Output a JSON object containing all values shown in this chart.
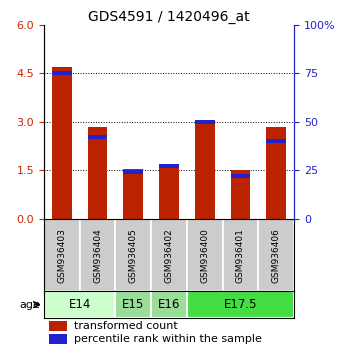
{
  "title": "GDS4591 / 1420496_at",
  "samples": [
    "GSM936403",
    "GSM936404",
    "GSM936405",
    "GSM936402",
    "GSM936400",
    "GSM936401",
    "GSM936406"
  ],
  "transformed_counts": [
    4.7,
    2.85,
    1.55,
    1.7,
    3.05,
    1.5,
    2.85
  ],
  "percentile_ranks": [
    75,
    42,
    24,
    27,
    50,
    22,
    40
  ],
  "left_ylim": [
    0,
    6
  ],
  "left_yticks": [
    0,
    1.5,
    3,
    4.5,
    6
  ],
  "right_ylim": [
    0,
    100
  ],
  "right_yticks": [
    0,
    25,
    50,
    75,
    100
  ],
  "bar_color": "#bb2200",
  "percentile_color": "#2222cc",
  "bar_width": 0.55,
  "age_groups": [
    {
      "label": "E14",
      "samples": [
        0,
        1
      ],
      "color": "#ccffcc"
    },
    {
      "label": "E15",
      "samples": [
        2
      ],
      "color": "#99dd99"
    },
    {
      "label": "E16",
      "samples": [
        3
      ],
      "color": "#99dd99"
    },
    {
      "label": "E17.5",
      "samples": [
        4,
        5,
        6
      ],
      "color": "#44dd44"
    }
  ],
  "left_axis_color": "#cc2200",
  "right_axis_color": "#2222cc",
  "grid_color": "black",
  "sample_box_color": "#cccccc",
  "legend_red_label": "transformed count",
  "legend_blue_label": "percentile rank within the sample",
  "age_label": "age",
  "title_fontsize": 10,
  "tick_fontsize": 8,
  "legend_fontsize": 8,
  "sample_fontsize": 6.5,
  "age_fontsize": 8.5
}
